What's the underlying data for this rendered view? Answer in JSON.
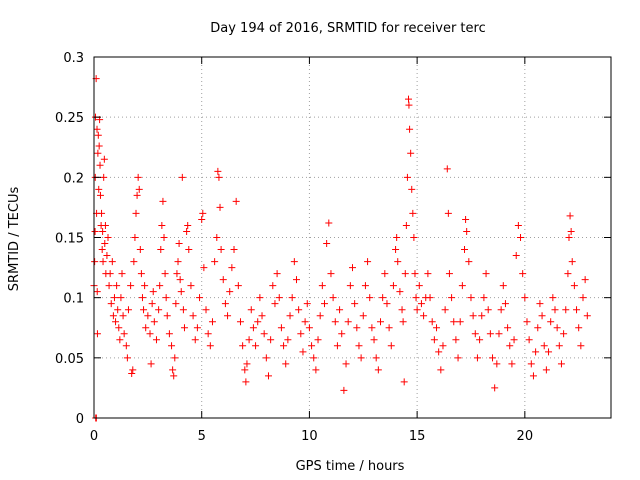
{
  "chart_data": {
    "type": "scatter",
    "title": "Day 194 of 2016, SRMTID for receiver terc",
    "xlabel": "GPS time / hours",
    "ylabel": "SRMTID / TECUs",
    "xlim": [
      0,
      24
    ],
    "ylim": [
      0,
      0.3
    ],
    "xticks": [
      {
        "value": 0,
        "label": "0"
      },
      {
        "value": 5,
        "label": "5"
      },
      {
        "value": 10,
        "label": "10"
      },
      {
        "value": 15,
        "label": "15"
      },
      {
        "value": 20,
        "label": "20"
      }
    ],
    "yticks": [
      {
        "value": 0,
        "label": "0"
      },
      {
        "value": 0.05,
        "label": "0.05"
      },
      {
        "value": 0.1,
        "label": "0.1"
      },
      {
        "value": 0.15,
        "label": "0.15"
      },
      {
        "value": 0.2,
        "label": "0.2"
      },
      {
        "value": 0.25,
        "label": "0.25"
      },
      {
        "value": 0.3,
        "label": "0.3"
      }
    ],
    "grid": true,
    "marker": "plus",
    "color": "#ff0000",
    "series": [
      {
        "name": "SRMTID",
        "points": [
          [
            0.0,
            0.11
          ],
          [
            0.03,
            0.13
          ],
          [
            0.05,
            0.155
          ],
          [
            0.06,
            0.2
          ],
          [
            0.07,
            0.25
          ],
          [
            0.08,
            0.0
          ],
          [
            0.1,
            0.282
          ],
          [
            0.11,
            0.0
          ],
          [
            0.12,
            0.17
          ],
          [
            0.14,
            0.24
          ],
          [
            0.15,
            0.105
          ],
          [
            0.16,
            0.07
          ],
          [
            0.18,
            0.22
          ],
          [
            0.2,
            0.235
          ],
          [
            0.22,
            0.19
          ],
          [
            0.24,
            0.226
          ],
          [
            0.26,
            0.248
          ],
          [
            0.28,
            0.21
          ],
          [
            0.3,
            0.185
          ],
          [
            0.33,
            0.16
          ],
          [
            0.35,
            0.17
          ],
          [
            0.38,
            0.14
          ],
          [
            0.4,
            0.155
          ],
          [
            0.42,
            0.13
          ],
          [
            0.45,
            0.2
          ],
          [
            0.48,
            0.215
          ],
          [
            0.5,
            0.145
          ],
          [
            0.53,
            0.16
          ],
          [
            0.55,
            0.12
          ],
          [
            0.6,
            0.135
          ],
          [
            0.65,
            0.15
          ],
          [
            0.7,
            0.11
          ],
          [
            0.75,
            0.12
          ],
          [
            0.8,
            0.095
          ],
          [
            0.85,
            0.13
          ],
          [
            0.9,
            0.085
          ],
          [
            0.95,
            0.1
          ],
          [
            1.0,
            0.08
          ],
          [
            1.05,
            0.11
          ],
          [
            1.1,
            0.09
          ],
          [
            1.15,
            0.075
          ],
          [
            1.2,
            0.065
          ],
          [
            1.25,
            0.1
          ],
          [
            1.3,
            0.12
          ],
          [
            1.35,
            0.085
          ],
          [
            1.4,
            0.07
          ],
          [
            1.5,
            0.06
          ],
          [
            1.55,
            0.05
          ],
          [
            1.6,
            0.09
          ],
          [
            1.7,
            0.11
          ],
          [
            1.75,
            0.037
          ],
          [
            1.8,
            0.04
          ],
          [
            1.85,
            0.13
          ],
          [
            1.9,
            0.15
          ],
          [
            1.95,
            0.17
          ],
          [
            2.0,
            0.185
          ],
          [
            2.05,
            0.2
          ],
          [
            2.1,
            0.19
          ],
          [
            2.15,
            0.14
          ],
          [
            2.2,
            0.12
          ],
          [
            2.25,
            0.1
          ],
          [
            2.3,
            0.09
          ],
          [
            2.35,
            0.11
          ],
          [
            2.4,
            0.075
          ],
          [
            2.5,
            0.085
          ],
          [
            2.6,
            0.07
          ],
          [
            2.65,
            0.045
          ],
          [
            2.7,
            0.095
          ],
          [
            2.75,
            0.105
          ],
          [
            2.8,
            0.08
          ],
          [
            2.9,
            0.065
          ],
          [
            3.0,
            0.09
          ],
          [
            3.05,
            0.11
          ],
          [
            3.1,
            0.14
          ],
          [
            3.15,
            0.16
          ],
          [
            3.2,
            0.18
          ],
          [
            3.25,
            0.15
          ],
          [
            3.3,
            0.12
          ],
          [
            3.35,
            0.1
          ],
          [
            3.4,
            0.085
          ],
          [
            3.5,
            0.07
          ],
          [
            3.6,
            0.06
          ],
          [
            3.65,
            0.04
          ],
          [
            3.7,
            0.035
          ],
          [
            3.75,
            0.05
          ],
          [
            3.8,
            0.095
          ],
          [
            3.85,
            0.12
          ],
          [
            3.9,
            0.13
          ],
          [
            3.95,
            0.145
          ],
          [
            4.0,
            0.115
          ],
          [
            4.05,
            0.105
          ],
          [
            4.1,
            0.2
          ],
          [
            4.15,
            0.09
          ],
          [
            4.2,
            0.075
          ],
          [
            4.3,
            0.155
          ],
          [
            4.35,
            0.16
          ],
          [
            4.4,
            0.14
          ],
          [
            4.5,
            0.11
          ],
          [
            4.6,
            0.085
          ],
          [
            4.7,
            0.065
          ],
          [
            4.8,
            0.075
          ],
          [
            4.9,
            0.1
          ],
          [
            5.0,
            0.165
          ],
          [
            5.05,
            0.17
          ],
          [
            5.1,
            0.125
          ],
          [
            5.2,
            0.09
          ],
          [
            5.3,
            0.07
          ],
          [
            5.4,
            0.06
          ],
          [
            5.5,
            0.08
          ],
          [
            5.6,
            0.13
          ],
          [
            5.7,
            0.15
          ],
          [
            5.75,
            0.205
          ],
          [
            5.8,
            0.2
          ],
          [
            5.85,
            0.175
          ],
          [
            5.9,
            0.14
          ],
          [
            6.0,
            0.115
          ],
          [
            6.1,
            0.095
          ],
          [
            6.2,
            0.085
          ],
          [
            6.3,
            0.105
          ],
          [
            6.4,
            0.125
          ],
          [
            6.5,
            0.14
          ],
          [
            6.6,
            0.18
          ],
          [
            6.7,
            0.11
          ],
          [
            6.8,
            0.08
          ],
          [
            6.9,
            0.06
          ],
          [
            7.0,
            0.04
          ],
          [
            7.05,
            0.03
          ],
          [
            7.1,
            0.045
          ],
          [
            7.2,
            0.065
          ],
          [
            7.3,
            0.09
          ],
          [
            7.4,
            0.075
          ],
          [
            7.5,
            0.06
          ],
          [
            7.6,
            0.08
          ],
          [
            7.7,
            0.1
          ],
          [
            7.8,
            0.085
          ],
          [
            7.9,
            0.07
          ],
          [
            8.0,
            0.05
          ],
          [
            8.1,
            0.035
          ],
          [
            8.2,
            0.065
          ],
          [
            8.3,
            0.11
          ],
          [
            8.4,
            0.095
          ],
          [
            8.5,
            0.12
          ],
          [
            8.6,
            0.1
          ],
          [
            8.7,
            0.075
          ],
          [
            8.8,
            0.06
          ],
          [
            8.9,
            0.045
          ],
          [
            9.0,
            0.065
          ],
          [
            9.1,
            0.085
          ],
          [
            9.2,
            0.1
          ],
          [
            9.3,
            0.13
          ],
          [
            9.4,
            0.115
          ],
          [
            9.5,
            0.09
          ],
          [
            9.6,
            0.07
          ],
          [
            9.7,
            0.055
          ],
          [
            9.8,
            0.08
          ],
          [
            9.9,
            0.095
          ],
          [
            10.0,
            0.075
          ],
          [
            10.1,
            0.06
          ],
          [
            10.2,
            0.05
          ],
          [
            10.3,
            0.04
          ],
          [
            10.4,
            0.065
          ],
          [
            10.5,
            0.085
          ],
          [
            10.6,
            0.11
          ],
          [
            10.7,
            0.095
          ],
          [
            10.8,
            0.145
          ],
          [
            10.9,
            0.162
          ],
          [
            11.0,
            0.12
          ],
          [
            11.1,
            0.1
          ],
          [
            11.2,
            0.08
          ],
          [
            11.3,
            0.06
          ],
          [
            11.4,
            0.09
          ],
          [
            11.5,
            0.07
          ],
          [
            11.6,
            0.023
          ],
          [
            11.7,
            0.045
          ],
          [
            11.8,
            0.08
          ],
          [
            11.9,
            0.11
          ],
          [
            12.0,
            0.125
          ],
          [
            12.1,
            0.095
          ],
          [
            12.2,
            0.075
          ],
          [
            12.3,
            0.06
          ],
          [
            12.4,
            0.05
          ],
          [
            12.5,
            0.085
          ],
          [
            12.6,
            0.11
          ],
          [
            12.7,
            0.13
          ],
          [
            12.8,
            0.1
          ],
          [
            12.9,
            0.075
          ],
          [
            13.0,
            0.065
          ],
          [
            13.1,
            0.05
          ],
          [
            13.2,
            0.04
          ],
          [
            13.3,
            0.08
          ],
          [
            13.4,
            0.1
          ],
          [
            13.5,
            0.12
          ],
          [
            13.6,
            0.095
          ],
          [
            13.7,
            0.075
          ],
          [
            13.8,
            0.06
          ],
          [
            13.9,
            0.11
          ],
          [
            14.0,
            0.14
          ],
          [
            14.05,
            0.15
          ],
          [
            14.1,
            0.13
          ],
          [
            14.2,
            0.105
          ],
          [
            14.3,
            0.09
          ],
          [
            14.35,
            0.08
          ],
          [
            14.4,
            0.03
          ],
          [
            14.45,
            0.12
          ],
          [
            14.5,
            0.16
          ],
          [
            14.55,
            0.2
          ],
          [
            14.6,
            0.265
          ],
          [
            14.62,
            0.26
          ],
          [
            14.65,
            0.24
          ],
          [
            14.7,
            0.22
          ],
          [
            14.75,
            0.19
          ],
          [
            14.8,
            0.17
          ],
          [
            14.85,
            0.15
          ],
          [
            14.9,
            0.12
          ],
          [
            14.95,
            0.1
          ],
          [
            15.0,
            0.09
          ],
          [
            15.1,
            0.11
          ],
          [
            15.2,
            0.095
          ],
          [
            15.3,
            0.085
          ],
          [
            15.4,
            0.1
          ],
          [
            15.5,
            0.12
          ],
          [
            15.6,
            0.1
          ],
          [
            15.7,
            0.08
          ],
          [
            15.8,
            0.065
          ],
          [
            15.9,
            0.075
          ],
          [
            16.0,
            0.055
          ],
          [
            16.1,
            0.04
          ],
          [
            16.2,
            0.06
          ],
          [
            16.3,
            0.09
          ],
          [
            16.4,
            0.207
          ],
          [
            16.45,
            0.17
          ],
          [
            16.5,
            0.12
          ],
          [
            16.6,
            0.1
          ],
          [
            16.7,
            0.08
          ],
          [
            16.8,
            0.065
          ],
          [
            16.9,
            0.05
          ],
          [
            17.0,
            0.08
          ],
          [
            17.1,
            0.11
          ],
          [
            17.2,
            0.14
          ],
          [
            17.25,
            0.165
          ],
          [
            17.3,
            0.155
          ],
          [
            17.4,
            0.13
          ],
          [
            17.5,
            0.1
          ],
          [
            17.6,
            0.085
          ],
          [
            17.7,
            0.07
          ],
          [
            17.8,
            0.05
          ],
          [
            17.9,
            0.065
          ],
          [
            18.0,
            0.085
          ],
          [
            18.1,
            0.1
          ],
          [
            18.2,
            0.12
          ],
          [
            18.3,
            0.09
          ],
          [
            18.4,
            0.07
          ],
          [
            18.5,
            0.05
          ],
          [
            18.6,
            0.025
          ],
          [
            18.7,
            0.045
          ],
          [
            18.8,
            0.07
          ],
          [
            18.9,
            0.09
          ],
          [
            19.0,
            0.11
          ],
          [
            19.1,
            0.095
          ],
          [
            19.2,
            0.075
          ],
          [
            19.3,
            0.06
          ],
          [
            19.4,
            0.045
          ],
          [
            19.5,
            0.065
          ],
          [
            19.6,
            0.135
          ],
          [
            19.7,
            0.16
          ],
          [
            19.8,
            0.15
          ],
          [
            19.9,
            0.12
          ],
          [
            20.0,
            0.1
          ],
          [
            20.1,
            0.08
          ],
          [
            20.2,
            0.065
          ],
          [
            20.3,
            0.045
          ],
          [
            20.4,
            0.035
          ],
          [
            20.5,
            0.055
          ],
          [
            20.6,
            0.075
          ],
          [
            20.7,
            0.095
          ],
          [
            20.8,
            0.085
          ],
          [
            20.9,
            0.06
          ],
          [
            21.0,
            0.04
          ],
          [
            21.1,
            0.055
          ],
          [
            21.2,
            0.08
          ],
          [
            21.3,
            0.1
          ],
          [
            21.4,
            0.09
          ],
          [
            21.5,
            0.075
          ],
          [
            21.6,
            0.06
          ],
          [
            21.7,
            0.045
          ],
          [
            21.8,
            0.07
          ],
          [
            21.9,
            0.09
          ],
          [
            22.0,
            0.12
          ],
          [
            22.05,
            0.15
          ],
          [
            22.1,
            0.168
          ],
          [
            22.15,
            0.155
          ],
          [
            22.2,
            0.13
          ],
          [
            22.3,
            0.11
          ],
          [
            22.4,
            0.09
          ],
          [
            22.5,
            0.075
          ],
          [
            22.6,
            0.06
          ],
          [
            22.7,
            0.1
          ],
          [
            22.8,
            0.115
          ],
          [
            22.9,
            0.085
          ]
        ]
      }
    ]
  }
}
